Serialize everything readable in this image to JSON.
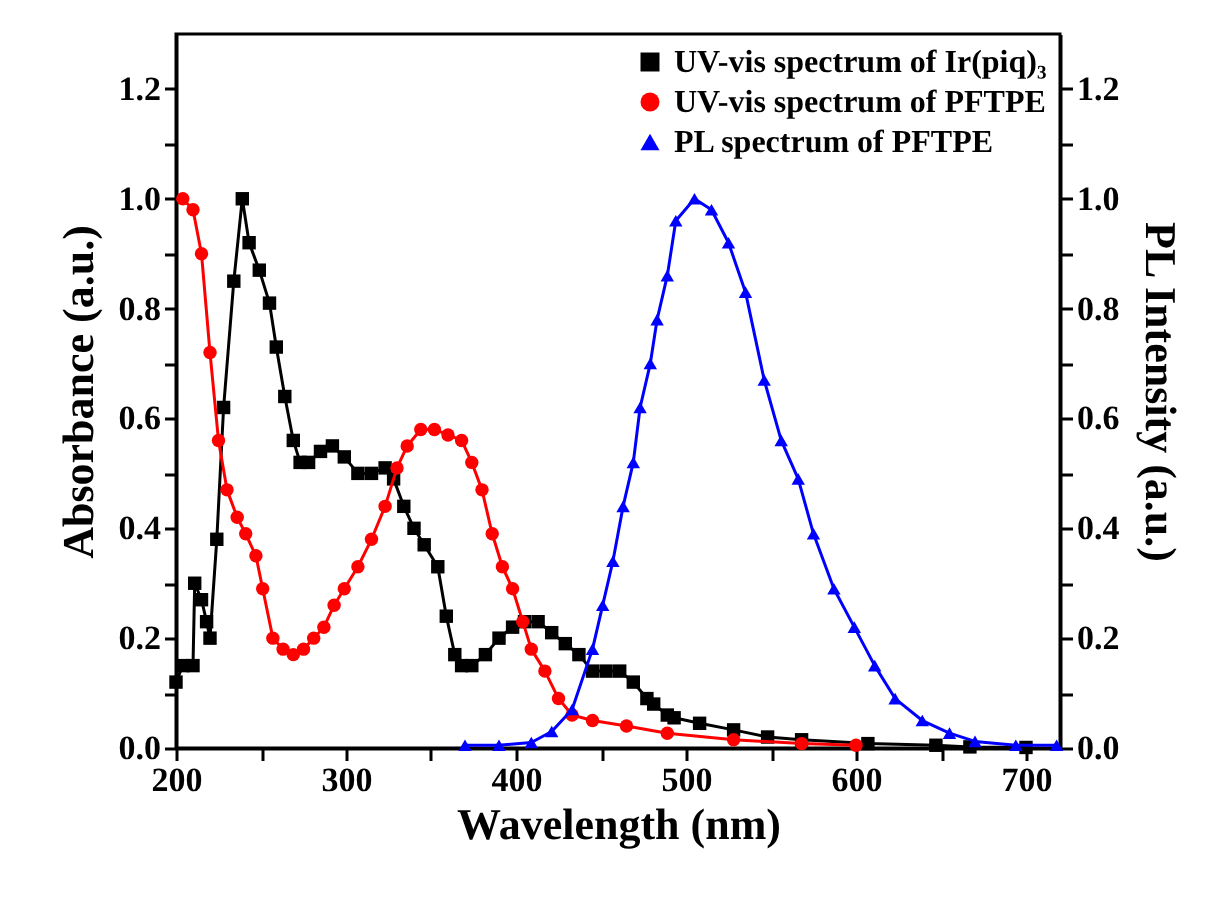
{
  "chart_data": {
    "type": "line",
    "xlabel": "Wavelength (nm)",
    "ylabel": "Absorbance (a.u.)",
    "y2label": "PL Intensity (a.u.)",
    "legend": "top right",
    "grid": false,
    "xlim": [
      200,
      720
    ],
    "xticks": [
      200,
      {
        "value": 250,
        "label": null
      },
      300,
      {
        "value": 350,
        "label": null
      },
      400,
      {
        "value": 450,
        "label": null
      },
      500,
      {
        "value": 550,
        "label": null
      },
      600,
      {
        "value": 650,
        "label": null
      },
      700
    ],
    "ylim": [
      0,
      1.3
    ],
    "yticks": [
      {
        "value": 0,
        "label": "0.0"
      },
      {
        "value": 0.1,
        "label": null
      },
      0.2,
      {
        "value": 0.3,
        "label": null
      },
      0.4,
      {
        "value": 0.5,
        "label": null
      },
      0.6,
      {
        "value": 0.7,
        "label": null
      },
      0.8,
      {
        "value": 0.9,
        "label": null
      },
      {
        "value": 1,
        "label": "1.0"
      },
      {
        "value": 1.1,
        "label": null
      },
      1.2
    ],
    "y2lim": [
      0,
      1.3
    ],
    "y2ticks": [
      {
        "value": 0,
        "label": "0.0"
      },
      {
        "value": 0.1,
        "label": null
      },
      0.2,
      {
        "value": 0.3,
        "label": null
      },
      0.4,
      {
        "value": 0.5,
        "label": null
      },
      0.6,
      {
        "value": 0.7,
        "label": null
      },
      0.8,
      {
        "value": 0.9,
        "label": null
      },
      {
        "value": 1,
        "label": "1.0"
      },
      {
        "value": 1.1,
        "label": null
      },
      1.2
    ],
    "series": [
      {
        "name": "UV-vis spectrum of Ir(piq)₃",
        "color": "#000000",
        "marker": "square",
        "x": [
          200,
          204,
          210,
          211,
          215,
          218,
          220,
          224,
          228,
          234,
          239,
          243,
          249,
          255,
          259,
          264,
          269,
          273,
          278,
          285,
          292,
          299,
          307,
          315,
          323,
          328,
          334,
          340,
          346,
          354,
          359,
          364,
          368,
          374,
          382,
          390,
          398,
          405,
          413,
          421,
          429,
          437,
          445,
          453,
          461,
          469,
          477,
          481,
          489,
          493,
          508,
          528,
          548,
          568,
          607,
          647,
          667,
          700
        ],
        "values": [
          0.12,
          0.15,
          0.15,
          0.3,
          0.27,
          0.23,
          0.2,
          0.38,
          0.62,
          0.85,
          1.0,
          0.92,
          0.87,
          0.81,
          0.73,
          0.64,
          0.56,
          0.52,
          0.52,
          0.54,
          0.55,
          0.53,
          0.5,
          0.5,
          0.51,
          0.49,
          0.44,
          0.4,
          0.37,
          0.33,
          0.24,
          0.17,
          0.15,
          0.15,
          0.17,
          0.2,
          0.22,
          0.23,
          0.23,
          0.21,
          0.19,
          0.17,
          0.14,
          0.14,
          0.14,
          0.12,
          0.09,
          0.08,
          0.06,
          0.055,
          0.045,
          0.033,
          0.02,
          0.015,
          0.008,
          0.005,
          0.002,
          0.001
        ]
      },
      {
        "name": "UV-vis spectrum of PFTPE",
        "color": "#ff0000",
        "marker": "circle",
        "x": [
          204,
          210,
          215,
          220,
          225,
          230,
          236,
          241,
          247,
          251,
          257,
          263,
          269,
          275,
          281,
          287,
          293,
          299,
          307,
          315,
          323,
          330,
          336,
          344,
          352,
          360,
          368,
          374,
          380,
          386,
          392,
          398,
          404,
          409,
          417,
          425,
          433,
          445,
          465,
          489,
          528,
          568,
          600
        ],
        "values": [
          1.0,
          0.98,
          0.9,
          0.72,
          0.56,
          0.47,
          0.42,
          0.39,
          0.35,
          0.29,
          0.2,
          0.18,
          0.17,
          0.18,
          0.2,
          0.22,
          0.26,
          0.29,
          0.33,
          0.38,
          0.44,
          0.51,
          0.55,
          0.58,
          0.58,
          0.57,
          0.56,
          0.52,
          0.47,
          0.39,
          0.33,
          0.29,
          0.23,
          0.18,
          0.14,
          0.09,
          0.06,
          0.05,
          0.04,
          0.027,
          0.015,
          0.008,
          0.005
        ]
      },
      {
        "name": "PL spectrum of PFTPE",
        "color": "#0000ff",
        "marker": "triangle",
        "axis": "y2",
        "x": [
          370,
          390,
          409,
          421,
          433,
          445,
          451,
          457,
          463,
          469,
          473,
          479,
          483,
          489,
          494,
          505,
          515,
          525,
          535,
          546,
          556,
          566,
          575,
          587,
          599,
          611,
          623,
          639,
          655,
          670,
          694,
          718
        ],
        "values": [
          0.005,
          0.005,
          0.01,
          0.03,
          0.07,
          0.18,
          0.26,
          0.34,
          0.44,
          0.52,
          0.62,
          0.7,
          0.78,
          0.86,
          0.96,
          1.0,
          0.98,
          0.92,
          0.83,
          0.67,
          0.56,
          0.49,
          0.39,
          0.29,
          0.22,
          0.15,
          0.09,
          0.05,
          0.027,
          0.012,
          0.005,
          0.005
        ]
      }
    ]
  }
}
